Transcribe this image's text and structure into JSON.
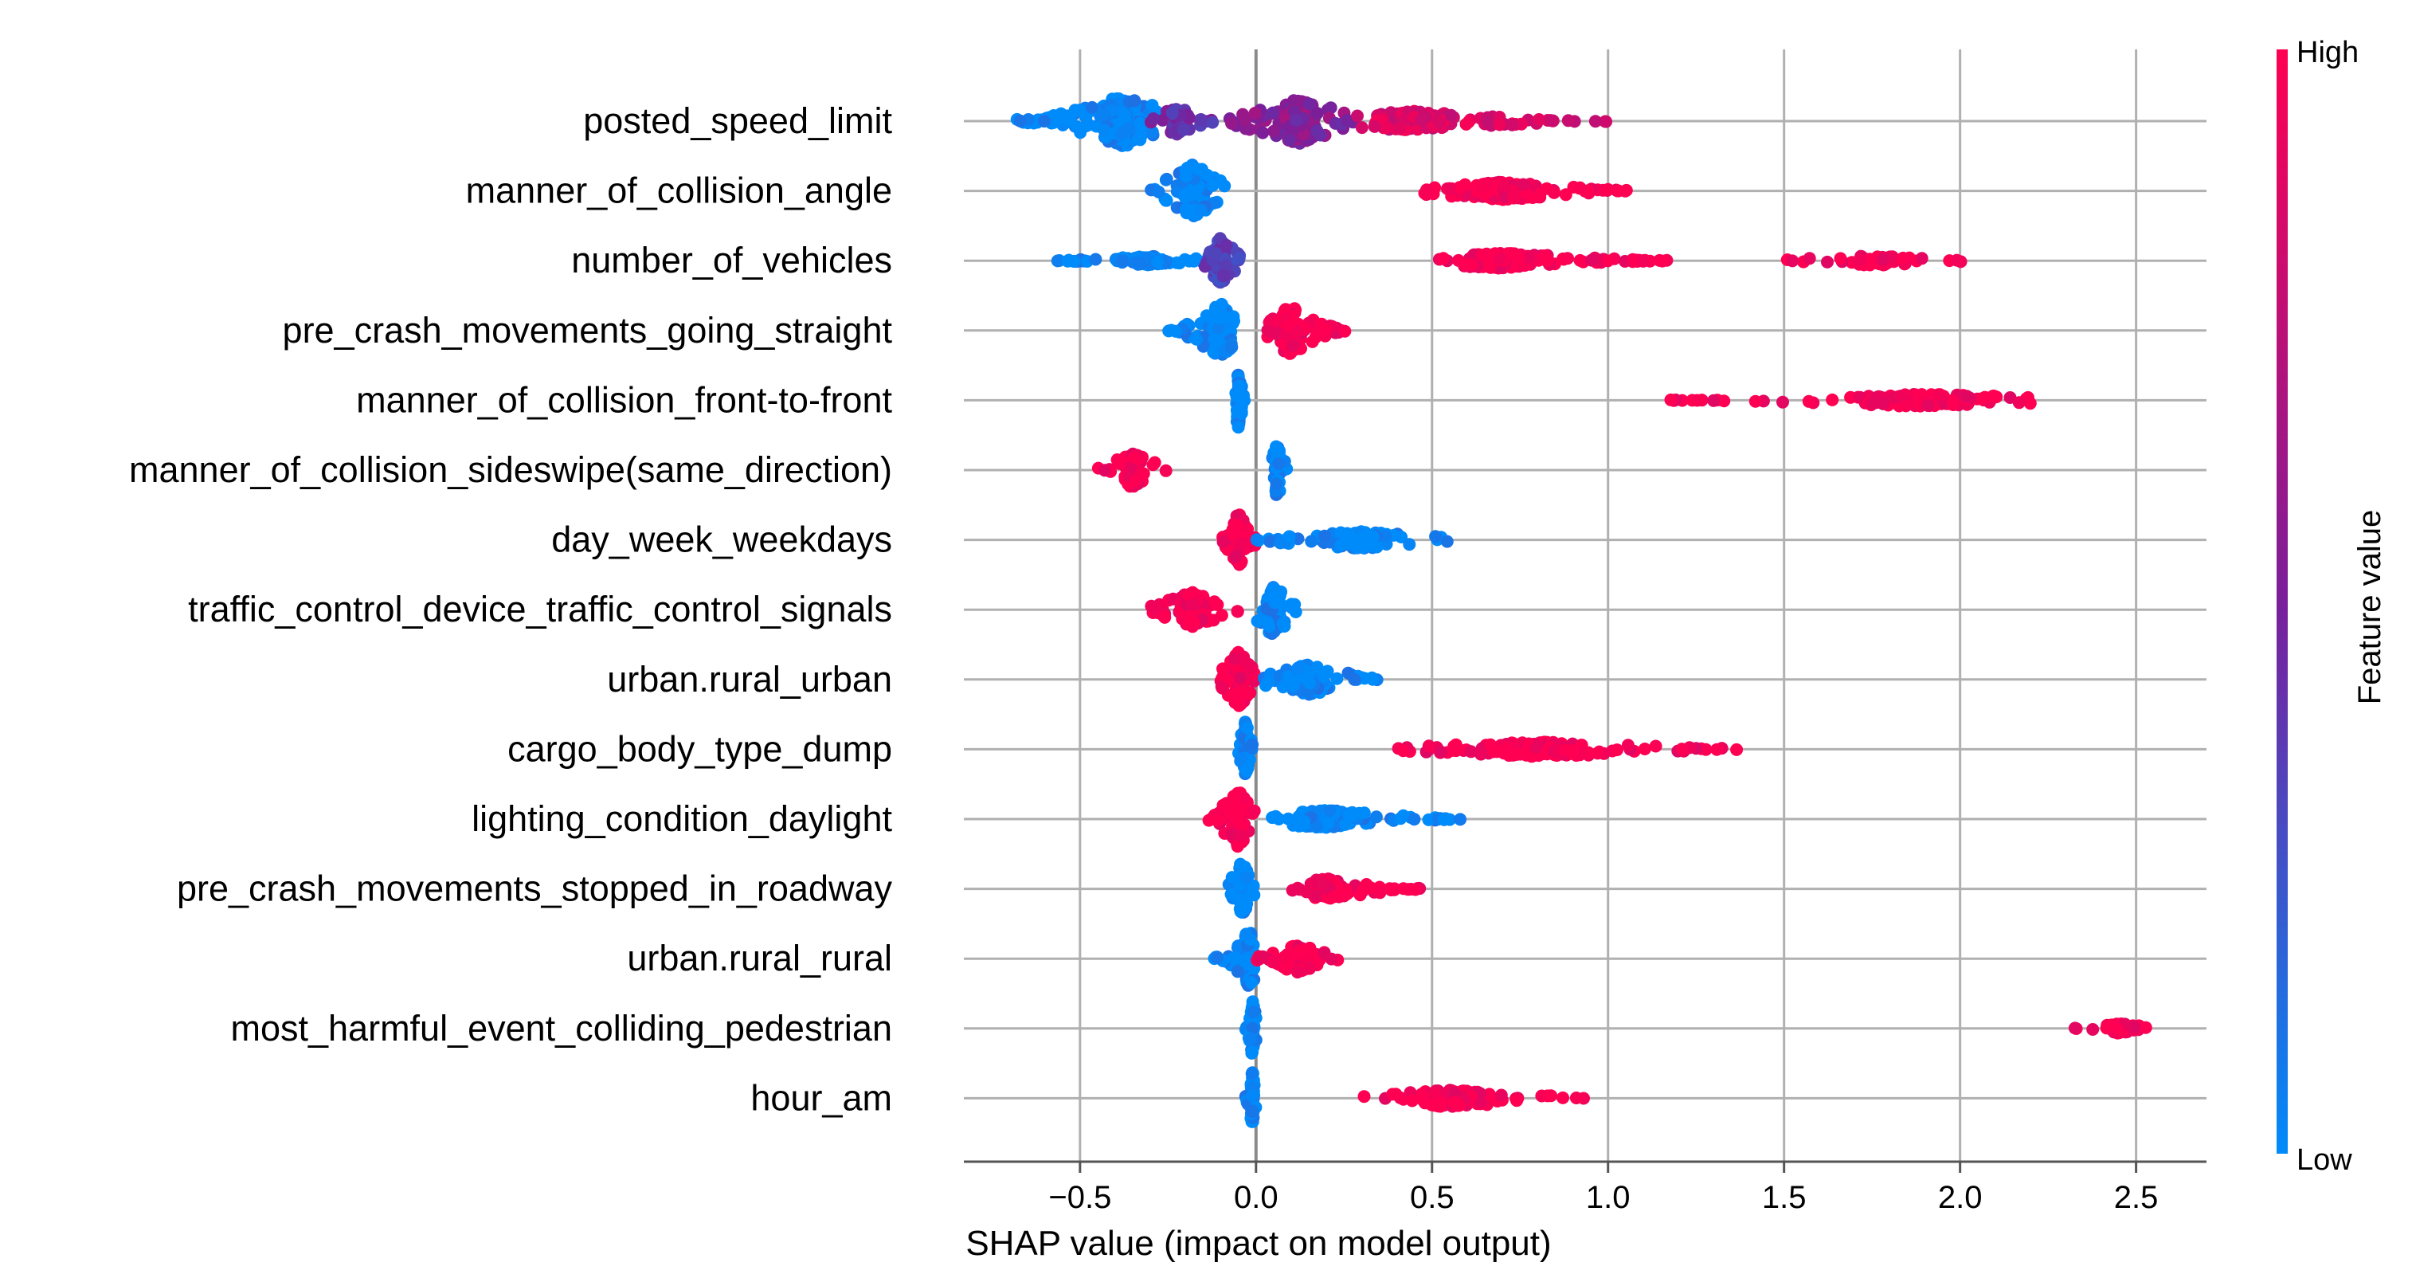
{
  "chart_data": {
    "type": "scatter",
    "subtype": "shap_beeswarm",
    "xlabel": "SHAP value (impact on model output)",
    "xlim": [
      -0.83,
      2.7
    ],
    "xticks": [
      -0.5,
      0.0,
      0.5,
      1.0,
      1.5,
      2.0,
      2.5
    ],
    "xtick_labels": [
      "−0.5",
      "0.0",
      "0.5",
      "1.0",
      "1.5",
      "2.0",
      "2.5"
    ],
    "grid": true,
    "colorbar": {
      "title": "Feature value",
      "high_label": "High",
      "low_label": "Low",
      "high_color": "#ff0052",
      "low_color": "#008bfb",
      "mid_color": "#7a1f9a"
    },
    "features": [
      {
        "name": "posted_speed_limit",
        "clusters": [
          {
            "min": -0.68,
            "max": -0.28,
            "center": -0.38,
            "count": 240,
            "value": 0.0,
            "spread": 0.4
          },
          {
            "min": -0.3,
            "max": -0.12,
            "center": -0.22,
            "count": 60,
            "value": 0.45,
            "spread": 0.22
          },
          {
            "min": -0.08,
            "max": 0.28,
            "center": 0.12,
            "count": 150,
            "value": 0.55,
            "spread": 0.36
          },
          {
            "min": 0.28,
            "max": 1.0,
            "center": 0.45,
            "count": 170,
            "value": 0.85,
            "spread": 0.16
          }
        ]
      },
      {
        "name": "manner_of_collision_angle",
        "clusters": [
          {
            "min": -0.3,
            "max": -0.08,
            "center": -0.18,
            "count": 110,
            "value": 0.0,
            "spread": 0.42
          },
          {
            "min": 0.47,
            "max": 1.06,
            "center": 0.7,
            "count": 190,
            "value": 1.0,
            "spread": 0.14
          }
        ]
      },
      {
        "name": "number_of_vehicles",
        "clusters": [
          {
            "min": -0.58,
            "max": -0.15,
            "center": -0.3,
            "count": 120,
            "value": 0.0,
            "spread": 0.07
          },
          {
            "min": -0.15,
            "max": -0.03,
            "center": -0.1,
            "count": 70,
            "value": 0.35,
            "spread": 0.38
          },
          {
            "min": 0.49,
            "max": 1.19,
            "center": 0.7,
            "count": 200,
            "value": 1.0,
            "spread": 0.12
          },
          {
            "min": 1.49,
            "max": 2.04,
            "center": 1.75,
            "count": 60,
            "value": 1.0,
            "spread": 0.08
          }
        ]
      },
      {
        "name": "pre_crash_movements_going_straight",
        "clusters": [
          {
            "min": -0.25,
            "max": -0.05,
            "center": -0.1,
            "count": 120,
            "value": 0.0,
            "spread": 0.42
          },
          {
            "min": 0.03,
            "max": 0.26,
            "center": 0.1,
            "count": 120,
            "value": 1.0,
            "spread": 0.38
          }
        ]
      },
      {
        "name": "manner_of_collision_front-to-front",
        "clusters": [
          {
            "min": -0.06,
            "max": -0.03,
            "center": -0.05,
            "count": 50,
            "value": 0.0,
            "spread": 0.44
          },
          {
            "min": 1.16,
            "max": 2.2,
            "center": 1.9,
            "count": 130,
            "value": 1.0,
            "spread": 0.1
          }
        ]
      },
      {
        "name": "manner_of_collision_sideswipe(same_direction)",
        "clusters": [
          {
            "min": -0.45,
            "max": -0.25,
            "center": -0.35,
            "count": 80,
            "value": 1.0,
            "spread": 0.28
          },
          {
            "min": 0.04,
            "max": 0.09,
            "center": 0.06,
            "count": 50,
            "value": 0.0,
            "spread": 0.44
          }
        ]
      },
      {
        "name": "day_week_weekdays",
        "clusters": [
          {
            "min": -0.1,
            "max": 0.0,
            "center": -0.05,
            "count": 90,
            "value": 1.0,
            "spread": 0.42
          },
          {
            "min": 0.0,
            "max": 0.57,
            "center": 0.3,
            "count": 130,
            "value": 0.0,
            "spread": 0.14
          }
        ]
      },
      {
        "name": "traffic_control_device_traffic_control_signals",
        "clusters": [
          {
            "min": -0.3,
            "max": -0.05,
            "center": -0.18,
            "count": 100,
            "value": 1.0,
            "spread": 0.28
          },
          {
            "min": 0.0,
            "max": 0.13,
            "center": 0.05,
            "count": 70,
            "value": 0.0,
            "spread": 0.44
          }
        ]
      },
      {
        "name": "urban.rural_urban",
        "clusters": [
          {
            "min": -0.12,
            "max": 0.0,
            "center": -0.05,
            "count": 110,
            "value": 1.0,
            "spread": 0.44
          },
          {
            "min": 0.02,
            "max": 0.35,
            "center": 0.15,
            "count": 110,
            "value": 0.0,
            "spread": 0.24
          }
        ]
      },
      {
        "name": "cargo_body_type_dump",
        "clusters": [
          {
            "min": -0.05,
            "max": -0.01,
            "center": -0.03,
            "count": 50,
            "value": 0.0,
            "spread": 0.44
          },
          {
            "min": 0.38,
            "max": 1.37,
            "center": 0.8,
            "count": 180,
            "value": 1.0,
            "spread": 0.12
          }
        ]
      },
      {
        "name": "lighting_condition_daylight",
        "clusters": [
          {
            "min": -0.14,
            "max": 0.0,
            "center": -0.05,
            "count": 100,
            "value": 1.0,
            "spread": 0.44
          },
          {
            "min": 0.02,
            "max": 0.61,
            "center": 0.2,
            "count": 150,
            "value": 0.0,
            "spread": 0.14
          }
        ]
      },
      {
        "name": "pre_crash_movements_stopped_in_roadway",
        "clusters": [
          {
            "min": -0.08,
            "max": 0.0,
            "center": -0.04,
            "count": 70,
            "value": 0.0,
            "spread": 0.44
          },
          {
            "min": 0.1,
            "max": 0.49,
            "center": 0.2,
            "count": 120,
            "value": 1.0,
            "spread": 0.16
          }
        ]
      },
      {
        "name": "urban.rural_rural",
        "clusters": [
          {
            "min": -0.12,
            "max": 0.0,
            "center": -0.02,
            "count": 80,
            "value": 0.0,
            "spread": 0.44
          },
          {
            "min": 0.0,
            "max": 0.24,
            "center": 0.12,
            "count": 90,
            "value": 1.0,
            "spread": 0.22
          }
        ]
      },
      {
        "name": "most_harmful_event_colliding_pedestrian",
        "clusters": [
          {
            "min": -0.03,
            "max": 0.0,
            "center": -0.01,
            "count": 50,
            "value": 0.0,
            "spread": 0.44
          },
          {
            "min": 2.32,
            "max": 2.53,
            "center": 2.45,
            "count": 40,
            "value": 1.0,
            "spread": 0.08
          }
        ]
      },
      {
        "name": "hour_am",
        "clusters": [
          {
            "min": -0.03,
            "max": 0.0,
            "center": -0.01,
            "count": 50,
            "value": 0.0,
            "spread": 0.44
          },
          {
            "min": 0.3,
            "max": 0.95,
            "center": 0.55,
            "count": 130,
            "value": 1.0,
            "spread": 0.14
          }
        ]
      }
    ]
  }
}
